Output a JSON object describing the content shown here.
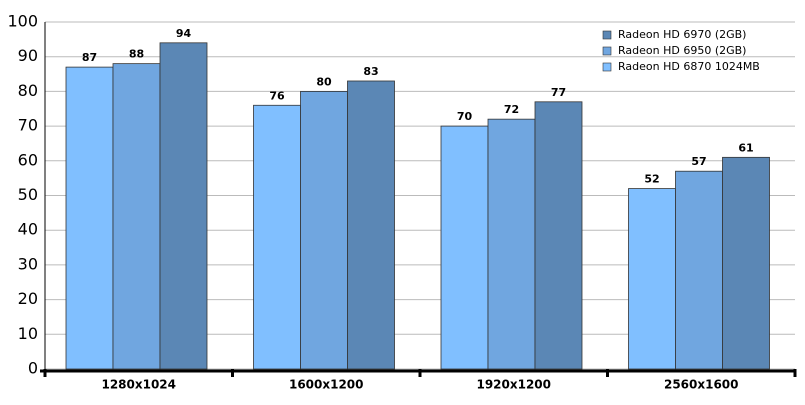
{
  "chart_data": {
    "type": "bar",
    "categories": [
      "1280x1024",
      "1600x1200",
      "1920x1200",
      "2560x1600"
    ],
    "series": [
      {
        "name": "Radeon HD 6970 (2GB)",
        "color": "#5b87b5",
        "values": [
          94,
          83,
          77,
          61
        ]
      },
      {
        "name": "Radeon HD 6950 (2GB)",
        "color": "#70a6e0",
        "values": [
          88,
          80,
          72,
          57
        ]
      },
      {
        "name": "Radeon HD 6870 1024MB",
        "color": "#80bfff",
        "values": [
          87,
          76,
          70,
          52
        ]
      }
    ],
    "ylim": [
      0,
      100
    ],
    "yticks": [
      0,
      10,
      20,
      30,
      40,
      50,
      60,
      70,
      80,
      90,
      100
    ],
    "grid": true,
    "legend": "top-right"
  }
}
